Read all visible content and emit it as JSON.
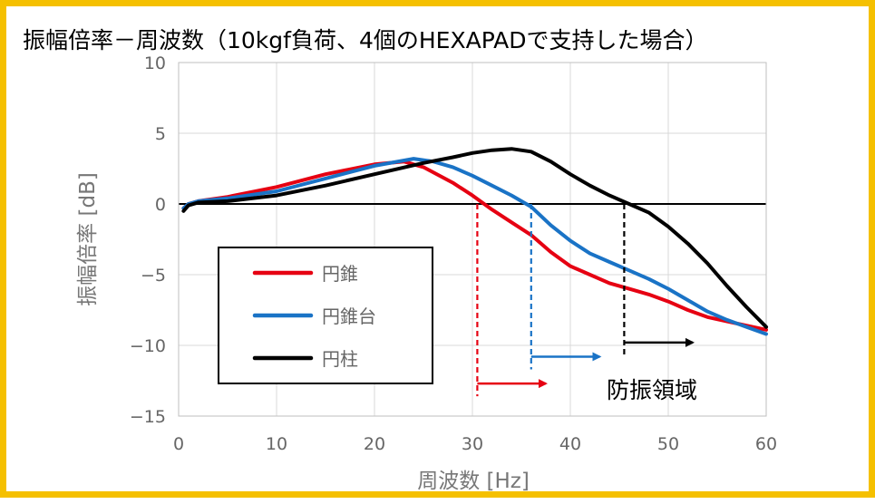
{
  "chart_data": {
    "type": "line",
    "title": "振幅倍率－周波数（10kgf負荷、4個のHEXAPADで支持した場合）",
    "xlabel": "周波数 [Hz]",
    "ylabel": "振幅倍率 [dB]",
    "xlim": [
      0,
      60
    ],
    "ylim": [
      -15,
      10
    ],
    "xticks": [
      0,
      10,
      20,
      30,
      40,
      50,
      60
    ],
    "yticks": [
      10,
      5,
      0,
      -5,
      -10,
      -15
    ],
    "grid": true,
    "legend_position": "lower-left",
    "series": [
      {
        "name": "円錐",
        "color": "#e60012",
        "x": [
          0.5,
          1,
          2,
          5,
          10,
          15,
          20,
          23,
          25,
          28,
          30,
          32,
          34,
          36,
          38,
          40,
          42,
          44,
          46,
          48,
          50,
          52,
          54,
          56,
          58,
          60
        ],
        "y": [
          -0.3,
          0,
          0.2,
          0.5,
          1.2,
          2.1,
          2.8,
          3.0,
          2.6,
          1.5,
          0.6,
          -0.4,
          -1.3,
          -2.2,
          -3.4,
          -4.4,
          -5.0,
          -5.6,
          -6.0,
          -6.4,
          -6.9,
          -7.5,
          -8.0,
          -8.3,
          -8.6,
          -8.9
        ]
      },
      {
        "name": "円錐台",
        "color": "#1a73c6",
        "x": [
          0.5,
          1,
          2,
          5,
          10,
          15,
          20,
          24,
          26,
          28,
          30,
          32,
          34,
          36,
          38,
          40,
          42,
          44,
          46,
          48,
          50,
          52,
          54,
          56,
          58,
          60
        ],
        "y": [
          -0.3,
          0,
          0.2,
          0.4,
          0.9,
          1.8,
          2.7,
          3.2,
          3.0,
          2.6,
          2.0,
          1.3,
          0.6,
          -0.2,
          -1.5,
          -2.6,
          -3.5,
          -4.1,
          -4.7,
          -5.3,
          -6.0,
          -6.8,
          -7.6,
          -8.2,
          -8.7,
          -9.2
        ]
      },
      {
        "name": "円柱",
        "color": "#000000",
        "x": [
          0.5,
          1,
          2,
          5,
          10,
          15,
          20,
          25,
          28,
          30,
          32,
          34,
          36,
          38,
          40,
          42,
          44,
          46,
          48,
          50,
          52,
          54,
          56,
          58,
          60
        ],
        "y": [
          -0.5,
          -0.1,
          0.1,
          0.2,
          0.6,
          1.3,
          2.1,
          2.9,
          3.3,
          3.6,
          3.8,
          3.9,
          3.7,
          3.0,
          2.1,
          1.3,
          0.6,
          0.0,
          -0.6,
          -1.6,
          -2.8,
          -4.2,
          -5.8,
          -7.3,
          -8.7
        ]
      }
    ],
    "annotations": {
      "label": "防振領域",
      "markers": [
        {
          "series": "円錐",
          "color": "#e60012",
          "x": 30.5,
          "arrow_to_x": 37.5,
          "arrow_y": -12.7
        },
        {
          "series": "円錐台",
          "color": "#1a73c6",
          "x": 36,
          "arrow_to_x": 43,
          "arrow_y": -10.8
        },
        {
          "series": "円柱",
          "color": "#000000",
          "x": 45.5,
          "arrow_to_x": 52.5,
          "arrow_y": -9.8
        }
      ]
    }
  }
}
